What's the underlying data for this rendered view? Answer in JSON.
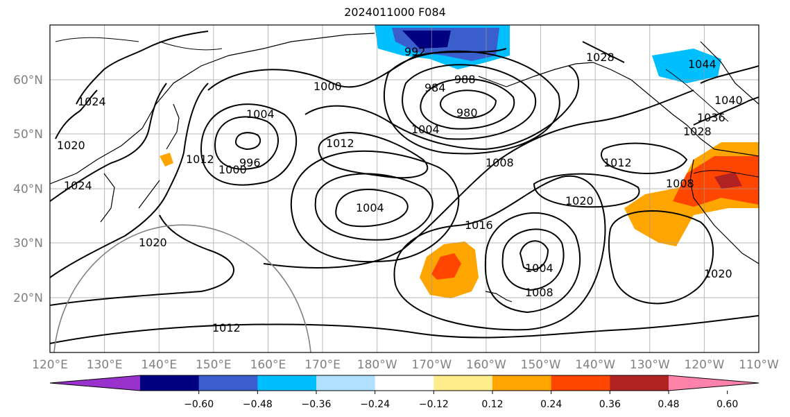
{
  "title": "2024011000 F084",
  "map": {
    "lon_labels": [
      "120°E",
      "130°E",
      "140°E",
      "150°E",
      "160°E",
      "170°E",
      "180°W",
      "170°W",
      "160°W",
      "150°W",
      "140°W",
      "130°W",
      "120°W",
      "110°W"
    ],
    "lat_labels": [
      "60°N",
      "50°N",
      "40°N",
      "30°N",
      "20°N"
    ],
    "contour_labels": [
      "996",
      "992",
      "988",
      "984",
      "980",
      "1000",
      "1004",
      "1008",
      "1012",
      "1016",
      "1020",
      "1024",
      "1028",
      "1036",
      "1040",
      "1044"
    ],
    "grid": true
  },
  "colorbar": {
    "ticks": [
      "−0.60",
      "−0.48",
      "−0.36",
      "−0.24",
      "−0.12",
      "0.12",
      "0.24",
      "0.36",
      "0.48",
      "0.60"
    ],
    "colors": [
      "#9932cc",
      "#000080",
      "#3a5fcd",
      "#00bfff",
      "#b0e2ff",
      "#ffffff",
      "#ffec8b",
      "#ffa500",
      "#ff4500",
      "#b22222",
      "#ff82ab"
    ]
  }
}
